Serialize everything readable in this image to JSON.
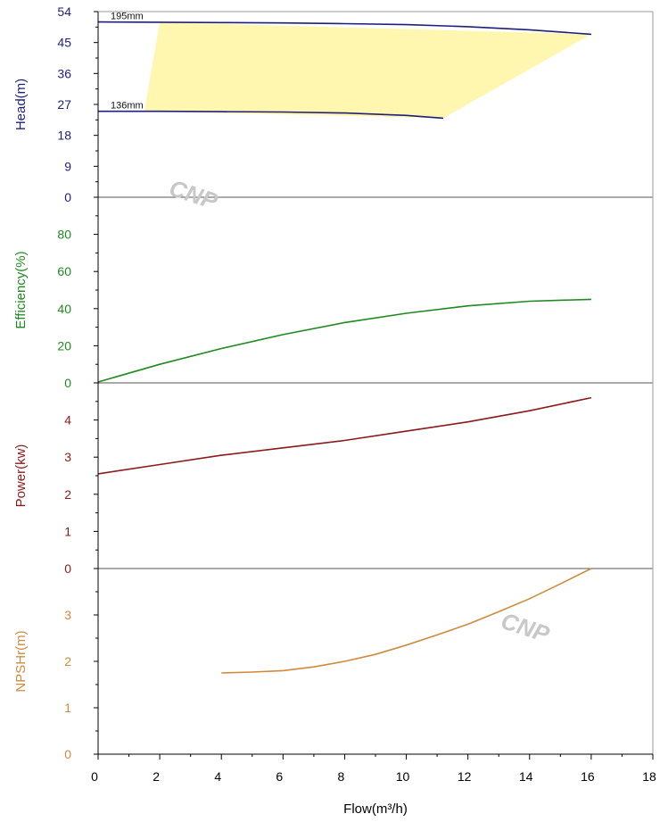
{
  "chart_data": {
    "type": "line",
    "xlabel": "Flow(m³/h)",
    "xlim": [
      0,
      18
    ],
    "xticks": [
      0,
      2,
      4,
      6,
      8,
      10,
      12,
      14,
      16,
      18
    ],
    "panels": [
      {
        "id": "head",
        "ylabel": "Head(m)",
        "color": "#1f1f7a",
        "ylim": [
          0,
          54
        ],
        "yticks": [
          0,
          9,
          18,
          27,
          36,
          45,
          54
        ],
        "series": [
          {
            "name": "195mm",
            "x": [
              0,
              2,
              4,
              6,
              8,
              10,
              12,
              14,
              16
            ],
            "y": [
              51.0,
              50.9,
              50.8,
              50.7,
              50.5,
              50.2,
              49.6,
              48.7,
              47.4
            ]
          },
          {
            "name": "136mm",
            "x": [
              0,
              2,
              4,
              6,
              8,
              10,
              11.2
            ],
            "y": [
              25.0,
              25.0,
              24.9,
              24.8,
              24.5,
              23.8,
              23.0
            ]
          }
        ],
        "operating_region": {
          "x": [
            2.0,
            16.0,
            11.2,
            1.5
          ],
          "y": [
            50.9,
            47.4,
            23.0,
            25.0
          ],
          "color": "#fff6b0"
        }
      },
      {
        "id": "efficiency",
        "ylabel": "Efficiency(%)",
        "color": "#1e8a1e",
        "ylim": [
          0,
          100
        ],
        "yticks": [
          0,
          20,
          40,
          60,
          80
        ],
        "series": [
          {
            "x": [
              0,
              2,
              4,
              6,
              8,
              10,
              12,
              14,
              16
            ],
            "y": [
              0.5,
              10,
              18.5,
              26,
              32.5,
              37.5,
              41.5,
              44,
              45
            ]
          }
        ]
      },
      {
        "id": "power",
        "ylabel": "Power(kw)",
        "color": "#8b1a1a",
        "ylim": [
          0,
          5
        ],
        "yticks": [
          0,
          1,
          2,
          3,
          4
        ],
        "series": [
          {
            "x": [
              0,
              2,
              4,
              6,
              8,
              10,
              12,
              14,
              16
            ],
            "y": [
              2.55,
              2.8,
              3.05,
              3.25,
              3.45,
              3.7,
              3.95,
              4.25,
              4.6
            ]
          }
        ]
      },
      {
        "id": "npshr",
        "ylabel": "NPSHr(m)",
        "color": "#d08a3c",
        "ylim": [
          0,
          4
        ],
        "yticks": [
          0,
          1,
          2,
          3
        ],
        "series": [
          {
            "x": [
              4,
              5,
              6,
              7,
              8,
              9,
              10,
              11,
              12,
              13,
              14,
              15,
              16
            ],
            "y": [
              1.75,
              1.77,
              1.8,
              1.88,
              2.0,
              2.15,
              2.35,
              2.57,
              2.8,
              3.07,
              3.35,
              3.67,
              4.0
            ]
          }
        ]
      }
    ],
    "watermarks": [
      "CNP",
      "CNP"
    ]
  }
}
